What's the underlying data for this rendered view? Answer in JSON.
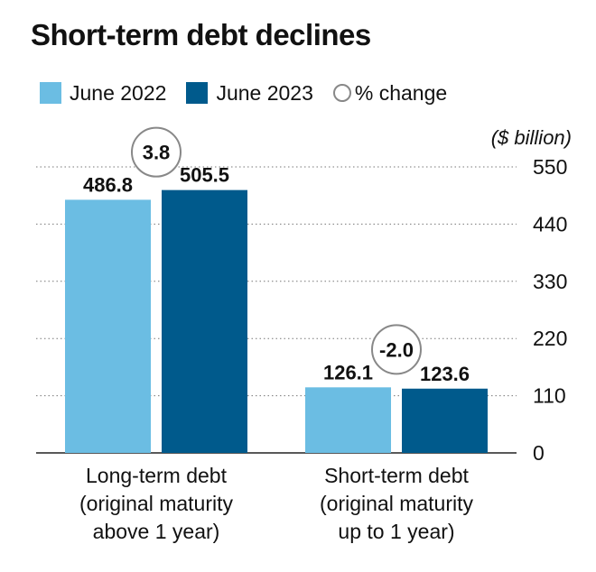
{
  "title": "Short-term debt declines",
  "legend": {
    "series1": "June 2022",
    "series2": "June 2023",
    "change": "% change",
    "series1_color": "#6bbde3",
    "series2_color": "#005a8c",
    "circle_color": "#888888"
  },
  "chart_data": {
    "type": "bar",
    "title": "Short-term debt declines",
    "unit_label": "($ billion)",
    "categories": [
      [
        "Long-term debt",
        "(original maturity",
        "above 1 year)"
      ],
      [
        "Short-term debt",
        "(original maturity",
        "up to 1 year)"
      ]
    ],
    "series": [
      {
        "name": "June 2022",
        "values": [
          486.8,
          126.1
        ],
        "labels": [
          "486.8",
          "126.1"
        ],
        "color": "#6bbde3"
      },
      {
        "name": "June 2023",
        "values": [
          505.5,
          123.6
        ],
        "labels": [
          "505.5",
          "123.6"
        ],
        "color": "#005a8c"
      }
    ],
    "pct_change": [
      "3.8",
      "-2.0"
    ],
    "ylim": [
      0,
      550
    ],
    "yticks": [
      0,
      110,
      220,
      330,
      440,
      550
    ],
    "ytick_labels": [
      "0",
      "110",
      "220",
      "330",
      "440",
      "550"
    ],
    "y_axis_side": "right",
    "grid": "dotted horizontal",
    "legend_position": "top-left"
  }
}
